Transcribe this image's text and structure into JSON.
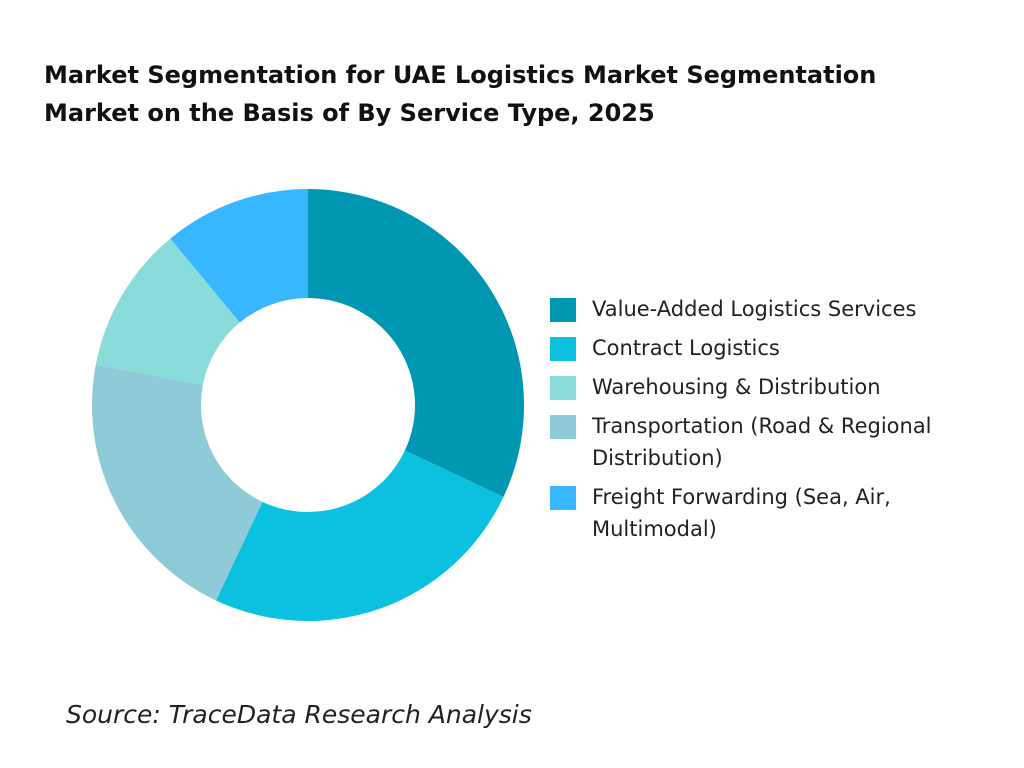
{
  "chart_data": {
    "type": "pie",
    "title": "Market Segmentation for UAE Logistics Market Segmentation Market on the Basis of By Service Type, 2025",
    "categories": [
      "Value-Added Logistics Services",
      "Contract Logistics",
      "Warehousing & Distribution",
      "Transportation (Road & Regional Distribution)",
      "Freight Forwarding (Sea, Air, Multimodal)"
    ],
    "values": [
      32,
      25,
      11,
      21,
      11
    ],
    "colors": [
      "#0097b2",
      "#0cc0df",
      "#89dcd9",
      "#8ecad8",
      "#38b6ff"
    ],
    "legend": "right",
    "source": "Source: TraceData Research Analysis"
  }
}
